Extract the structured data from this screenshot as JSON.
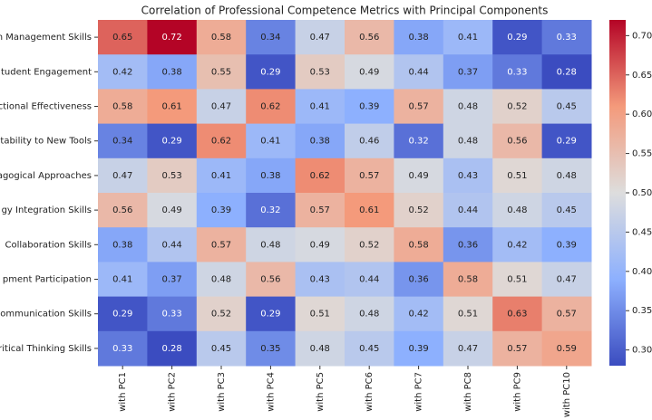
{
  "chart_data": {
    "type": "heatmap",
    "title": "Correlation of Professional Competence Metrics with Principal Components",
    "rows": [
      "n Management Skills",
      "tudent Engagement",
      "ctional Effectiveness",
      "tability to New Tools",
      "agogical Approaches",
      "gy Integration Skills",
      "Collaboration Skills",
      "pment Participation",
      "ommunication Skills",
      "ritical Thinking Skills"
    ],
    "columns": [
      "with PC1",
      "with PC2",
      "with PC3",
      "with PC4",
      "with PC5",
      "with PC6",
      "with PC7",
      "with PC8",
      "with PC9",
      "with PC10"
    ],
    "z": [
      [
        0.65,
        0.72,
        0.58,
        0.34,
        0.47,
        0.56,
        0.38,
        0.41,
        0.29,
        0.33
      ],
      [
        0.42,
        0.38,
        0.55,
        0.29,
        0.53,
        0.49,
        0.44,
        0.37,
        0.33,
        0.28
      ],
      [
        0.58,
        0.61,
        0.47,
        0.62,
        0.41,
        0.39,
        0.57,
        0.48,
        0.52,
        0.45
      ],
      [
        0.34,
        0.29,
        0.62,
        0.41,
        0.38,
        0.46,
        0.32,
        0.48,
        0.56,
        0.29
      ],
      [
        0.47,
        0.53,
        0.41,
        0.38,
        0.62,
        0.57,
        0.49,
        0.43,
        0.51,
        0.48
      ],
      [
        0.56,
        0.49,
        0.39,
        0.32,
        0.57,
        0.61,
        0.52,
        0.44,
        0.48,
        0.45
      ],
      [
        0.38,
        0.44,
        0.57,
        0.48,
        0.49,
        0.52,
        0.58,
        0.36,
        0.42,
        0.39
      ],
      [
        0.41,
        0.37,
        0.48,
        0.56,
        0.43,
        0.44,
        0.36,
        0.58,
        0.51,
        0.47
      ],
      [
        0.29,
        0.33,
        0.52,
        0.29,
        0.51,
        0.48,
        0.42,
        0.51,
        0.63,
        0.57
      ],
      [
        0.33,
        0.28,
        0.45,
        0.35,
        0.48,
        0.45,
        0.39,
        0.47,
        0.57,
        0.59
      ]
    ],
    "colormap": "coolwarm",
    "zlim": [
      0.28,
      0.72
    ],
    "zticks": [
      {
        "value": 0.3,
        "label": "0.30"
      },
      {
        "value": 0.35,
        "label": "0.35"
      },
      {
        "value": 0.4,
        "label": "0.40"
      },
      {
        "value": 0.45,
        "label": "0.45"
      },
      {
        "value": 0.5,
        "label": "0.50"
      },
      {
        "value": 0.55,
        "label": "0.55"
      },
      {
        "value": 0.6,
        "label": "0.60"
      },
      {
        "value": 0.65,
        "label": "0.65"
      },
      {
        "value": 0.7,
        "label": "0.70"
      }
    ]
  }
}
